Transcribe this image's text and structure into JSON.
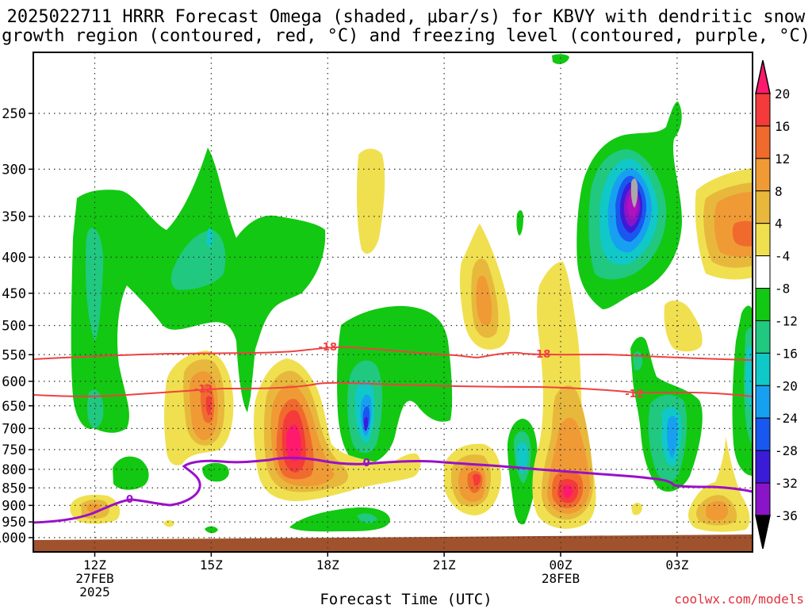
{
  "title": {
    "line1": "2025022711 HRRR Forecast Omega (shaded, μbar/s) for KBVY with dendritic snow",
    "line2": "growth region (contoured, red, °C) and freezing level (contoured, purple, °C)"
  },
  "credit": "coolwx.com/models",
  "chart_data": {
    "type": "heatmap",
    "title": "2025022711 HRRR Forecast Omega (shaded, μbar/s) for KBVY with dendritic snow growth region (contoured, red, °C) and freezing level (contoured, purple, °C)",
    "xlabel": "Forecast Time (UTC)",
    "ylabel": "",
    "y_scale": "log-pressure (hPa, inverted)",
    "ylim": [
      1000,
      200
    ],
    "grid": true,
    "x_hours": [
      11,
      29
    ],
    "x_ticks": [
      {
        "hour": 12,
        "lines": [
          "12Z",
          "27FEB",
          "2025"
        ]
      },
      {
        "hour": 15,
        "lines": [
          "15Z"
        ]
      },
      {
        "hour": 18,
        "lines": [
          "18Z"
        ]
      },
      {
        "hour": 21,
        "lines": [
          "21Z"
        ]
      },
      {
        "hour": 24,
        "lines": [
          "00Z",
          "28FEB"
        ]
      },
      {
        "hour": 27,
        "lines": [
          "03Z"
        ]
      }
    ],
    "y_ticks": [
      250,
      300,
      350,
      400,
      450,
      500,
      550,
      600,
      650,
      700,
      750,
      800,
      850,
      900,
      950,
      1000
    ],
    "colorbar": {
      "levels": [
        20,
        16,
        12,
        8,
        4,
        -4,
        -8,
        -12,
        -16,
        -20,
        -24,
        -28,
        -32,
        -36
      ],
      "colors": [
        "#ff1a6e",
        "#f43a3a",
        "#f06a2e",
        "#f09a36",
        "#e8b83c",
        "#f0e050",
        "#ffffff",
        "#12c812",
        "#20c880",
        "#10c8c8",
        "#18a0f0",
        "#1858f0",
        "#3a1cd8",
        "#8a14c8",
        "#b010c0",
        "#a8a8a8",
        "#000000"
      ]
    },
    "contours": [
      {
        "label": "-18",
        "color": "#f04040",
        "hour_labels": [
          18.0,
          23.5
        ]
      },
      {
        "label": "-12",
        "color": "#f04040",
        "hour_labels": [
          14.8,
          25.9
        ]
      },
      {
        "label": "0",
        "color": "#9a10c8",
        "hour_labels": [
          12.9,
          19.0
        ]
      }
    ],
    "omega_cells": [
      {
        "hour": 12.1,
        "hPa": 575,
        "value": -8,
        "core": -12
      },
      {
        "hour": 14.9,
        "hPa": 390,
        "value": -8,
        "core": -12
      },
      {
        "hour": 19.1,
        "hPa": 700,
        "value": -8,
        "core": -20
      },
      {
        "hour": 23.3,
        "hPa": 420,
        "value": 4,
        "core": 12
      },
      {
        "hour": 25.9,
        "hPa": 335,
        "value": -8,
        "core": -36
      },
      {
        "hour": 26.9,
        "hPa": 720,
        "value": -8,
        "core": -16
      },
      {
        "hour": 15.0,
        "hPa": 640,
        "value": 4,
        "core": 12
      },
      {
        "hour": 17.0,
        "hPa": 730,
        "value": 4,
        "core": 20
      },
      {
        "hour": 24.1,
        "hPa": 880,
        "value": 4,
        "core": 16
      },
      {
        "hour": 22.0,
        "hPa": 815,
        "value": 4,
        "core": 16
      },
      {
        "hour": 28.6,
        "hPa": 380,
        "value": 4,
        "core": 12
      },
      {
        "hour": 28.0,
        "hPa": 915,
        "value": 4,
        "core": 12
      }
    ]
  }
}
